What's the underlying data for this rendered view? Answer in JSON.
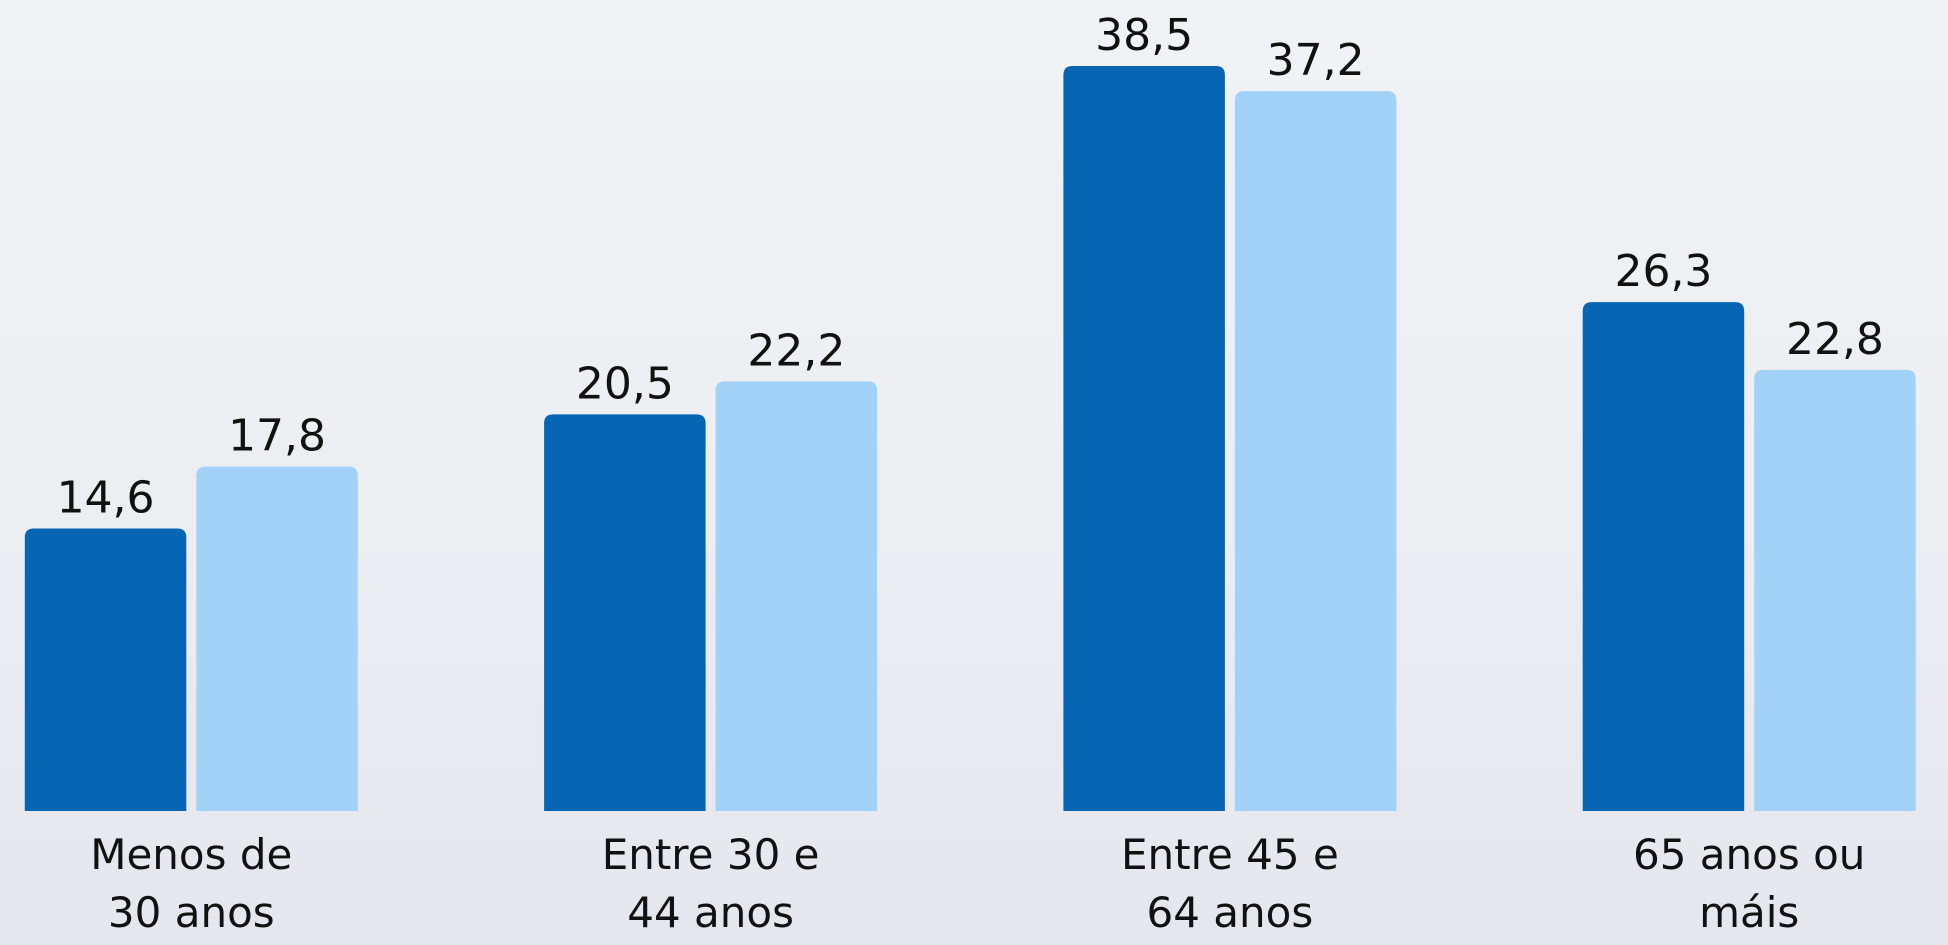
{
  "chart_data": {
    "type": "bar",
    "categories": [
      "Menos de 30 anos",
      "Entre 30 e 44 anos",
      "Entre 45 e 64 anos",
      "65 anos ou máis"
    ],
    "series": [
      {
        "color": "#0766b3",
        "values": [
          14.6,
          20.5,
          38.5,
          26.3
        ],
        "value_labels": [
          "14,6",
          "20,5",
          "38,5",
          "26,3"
        ]
      },
      {
        "color": "#a3d2f8",
        "values": [
          17.8,
          22.2,
          37.2,
          22.8
        ],
        "value_labels": [
          "17,8",
          "22,2",
          "37,2",
          "22,8"
        ]
      }
    ],
    "ylim": [
      0,
      40
    ]
  }
}
